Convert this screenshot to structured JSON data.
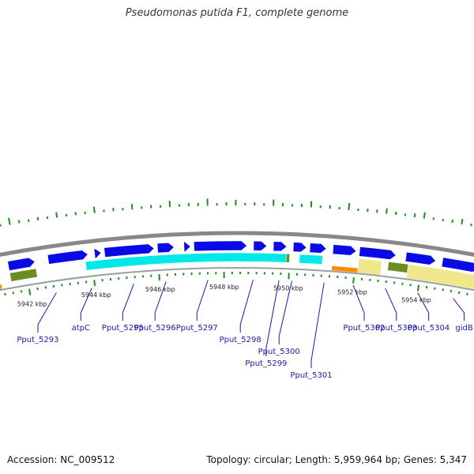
{
  "title": "Pseudomonas putida F1, complete genome",
  "footer": {
    "accession": "Accession: NC_009512",
    "stats": "Topology: circular; Length: 5,959,964 bp; Genes: 5,347"
  },
  "colors": {
    "backbone": "#888888",
    "cds_forward": "#0a0ae6",
    "cds_reverse_track": "#00e8e8",
    "gc_skew": "#6b8e23",
    "gc_content": "#f0e68c",
    "rna": "#ff8c00",
    "gc_tick": "#228b22",
    "label": "#1a1aa6"
  },
  "chart_data": {
    "type": "genome-map",
    "view_range_kbp": [
      5941.1,
      5955.7
    ],
    "scale_labels": [
      "5942 kbp",
      "5944 kbp",
      "5946 kbp",
      "5948 kbp",
      "5950 kbp",
      "5952 kbp",
      "5954 kbp"
    ],
    "scale_values_kbp": [
      5942,
      5944,
      5946,
      5948,
      5950,
      5952,
      5954
    ],
    "forward_cds_kbp": [
      [
        5940.9,
        5941.2
      ],
      [
        5941.5,
        5942.3
      ],
      [
        5942.7,
        5943.9
      ],
      [
        5944.1,
        5944.3
      ],
      [
        5944.4,
        5945.9
      ],
      [
        5946.0,
        5946.5
      ],
      [
        5946.8,
        5947.0
      ],
      [
        5947.1,
        5948.7
      ],
      [
        5948.9,
        5949.3
      ],
      [
        5949.5,
        5949.9
      ],
      [
        5950.1,
        5950.5
      ],
      [
        5950.6,
        5951.1
      ],
      [
        5951.3,
        5952.0
      ],
      [
        5952.1,
        5953.2
      ],
      [
        5953.5,
        5954.4
      ],
      [
        5954.6,
        5955.7
      ]
    ],
    "reverse_track_kbp": [
      [
        5943.8,
        5950.0
      ],
      [
        5950.3,
        5951.0
      ]
    ],
    "gc_skew_kbp": [
      [
        5941.5,
        5942.3
      ],
      [
        5949.9,
        5950.0
      ],
      [
        5953.0,
        5953.6
      ]
    ],
    "gc_content_kbp": [
      [
        5952.1,
        5952.8
      ],
      [
        5953.6,
        5955.7
      ]
    ],
    "rna_kbp": [
      [
        5940.9,
        5941.2
      ],
      [
        5951.3,
        5952.1
      ]
    ],
    "gc_tick_heights": [
      3,
      9,
      4,
      3,
      4,
      3,
      7,
      3,
      4,
      3,
      8,
      3,
      4,
      3,
      7,
      3,
      4,
      3,
      8,
      3,
      4,
      4,
      9,
      3,
      4,
      7,
      3,
      4,
      3,
      8,
      4,
      3,
      4,
      8,
      3,
      4,
      3,
      9,
      3,
      4,
      4,
      7,
      4,
      3,
      5,
      8,
      3,
      3,
      4,
      7,
      3
    ],
    "gene_labels": [
      {
        "name": "Pput_5293",
        "pos_kbp": 5942.8,
        "bend": 1
      },
      {
        "name": "atpC",
        "pos_kbp": 5943.9,
        "bend": 0
      },
      {
        "name": "Pput_5295",
        "pos_kbp": 5945.2,
        "bend": 0
      },
      {
        "name": "Pput_5296",
        "pos_kbp": 5946.2,
        "bend": 0
      },
      {
        "name": "Pput_5297",
        "pos_kbp": 5947.5,
        "bend": 0
      },
      {
        "name": "Pput_5298",
        "pos_kbp": 5948.9,
        "bend": 1
      },
      {
        "name": "Pput_5299",
        "pos_kbp": 5949.7,
        "bend": 3
      },
      {
        "name": "Pput_5300",
        "pos_kbp": 5950.1,
        "bend": 2
      },
      {
        "name": "Pput_5301",
        "pos_kbp": 5951.1,
        "bend": 4
      },
      {
        "name": "Pput_5302",
        "pos_kbp": 5952.0,
        "bend": 0
      },
      {
        "name": "Pput_5303",
        "pos_kbp": 5953.0,
        "bend": 0
      },
      {
        "name": "Pput_5304",
        "pos_kbp": 5954.0,
        "bend": 0
      },
      {
        "name": "gidB",
        "pos_kbp": 5955.1,
        "bend": 0
      }
    ]
  }
}
